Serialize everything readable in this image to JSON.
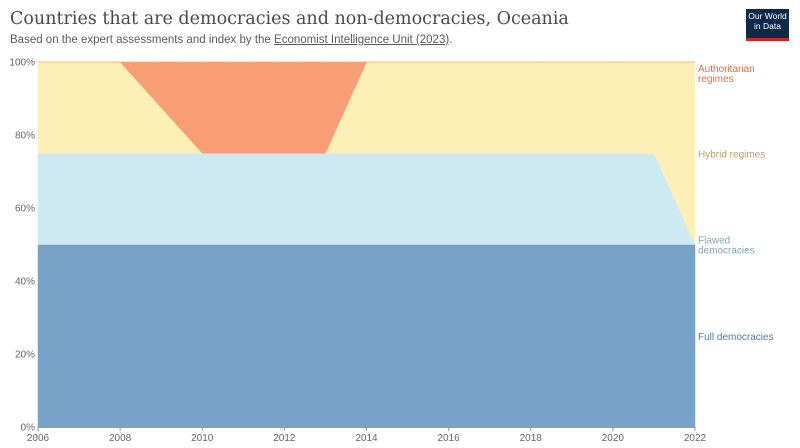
{
  "header": {
    "title": "Countries that are democracies and non-democracies, Oceania",
    "subtitle_prefix": "Based on the expert assessments and index by the ",
    "subtitle_source": "Economist Intelligence Unit (2023)",
    "subtitle_suffix": "."
  },
  "logo": {
    "line1": "Our World",
    "line2": "in Data"
  },
  "chart_data": {
    "type": "area",
    "stacked": true,
    "relative": true,
    "x": [
      2006,
      2008,
      2010,
      2011,
      2012,
      2013,
      2014,
      2016,
      2018,
      2020,
      2021,
      2022
    ],
    "series": [
      {
        "name": "Full democracies",
        "color": "#79a2c9",
        "label_color": "#4a7bb0",
        "values": [
          50,
          50,
          50,
          50,
          50,
          50,
          50,
          50,
          50,
          50,
          50,
          50
        ]
      },
      {
        "name": "Flawed democracies",
        "color": "#cde9f2",
        "label_color": "#83a4b1",
        "values": [
          25,
          25,
          25,
          25,
          25,
          25,
          25,
          25,
          25,
          25,
          25,
          0
        ]
      },
      {
        "name": "Hybrid regimes",
        "color": "#fdefb5",
        "label_color": "#b89f6b",
        "values": [
          25,
          25,
          0,
          0,
          0,
          0,
          25,
          25,
          25,
          25,
          25,
          50
        ]
      },
      {
        "name": "Authoritarian regimes",
        "color": "#f79e76",
        "label_color": "#e06b3e",
        "values": [
          0,
          0,
          25,
          25,
          25,
          25,
          0,
          0,
          0,
          0,
          0,
          0
        ]
      }
    ],
    "series_labels": [
      {
        "lines": [
          "Full democracies"
        ]
      },
      {
        "lines": [
          "Flawed",
          "democracies"
        ]
      },
      {
        "lines": [
          "Hybrid regimes"
        ]
      },
      {
        "lines": [
          "Authoritarian",
          "regimes"
        ]
      }
    ],
    "x_ticks": [
      "2006",
      "2008",
      "2010",
      "2012",
      "2014",
      "2016",
      "2018",
      "2020",
      "2022"
    ],
    "y_ticks": [
      "0%",
      "20%",
      "40%",
      "60%",
      "80%",
      "100%"
    ],
    "xlim": [
      2006,
      2022
    ],
    "ylim": [
      0,
      100
    ],
    "grid": "horizontal",
    "legend": "right"
  }
}
